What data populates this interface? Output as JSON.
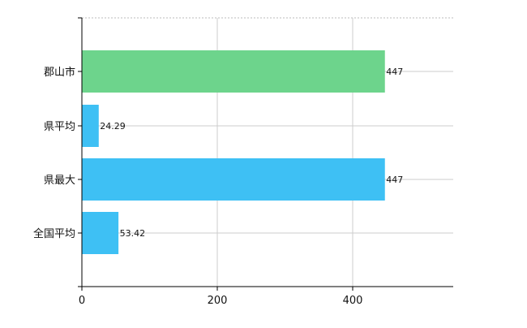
{
  "chart_data": {
    "type": "bar",
    "orientation": "horizontal",
    "categories": [
      "郡山市",
      "県平均",
      "県最大",
      "全国平均"
    ],
    "values": [
      447,
      24.29,
      447,
      53.42
    ],
    "value_labels": [
      "447",
      "24.29",
      "447",
      "53.42"
    ],
    "bar_colors": [
      "#6dd48c",
      "#3ec0f4",
      "#3ec0f4",
      "#3ec0f4"
    ],
    "xlim": [
      0,
      550
    ],
    "x_ticks": [
      0,
      200,
      400
    ],
    "x_tick_labels": [
      "0",
      "200",
      "400"
    ],
    "title": "",
    "xlabel": "",
    "ylabel": "",
    "grid": true,
    "legend": "none"
  }
}
